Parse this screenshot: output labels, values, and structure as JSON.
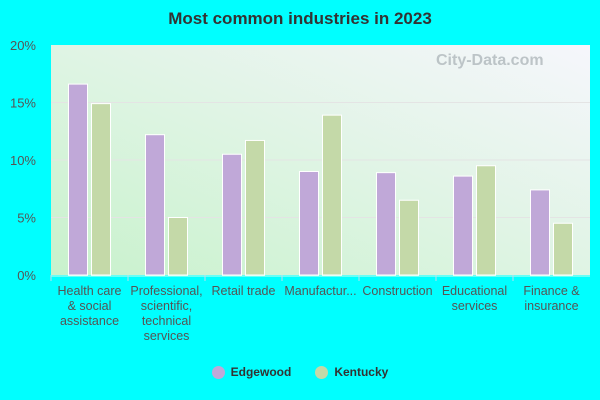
{
  "chart_data": {
    "type": "bar",
    "title": "Most common industries in 2023",
    "categories": [
      [
        "Health care",
        "& social",
        "assistance"
      ],
      [
        "Professional,",
        "scientific,",
        "technical",
        "services"
      ],
      [
        "Retail trade"
      ],
      [
        "Manufactur..."
      ],
      [
        "Construction"
      ],
      [
        "Educational",
        "services"
      ],
      [
        "Finance &",
        "insurance"
      ]
    ],
    "series": [
      {
        "name": "Edgewood",
        "color": "#c0a8d8",
        "values": [
          16.6,
          12.2,
          10.5,
          9.0,
          8.9,
          8.6,
          7.4
        ]
      },
      {
        "name": "Kentucky",
        "color": "#c4d9a8",
        "values": [
          14.9,
          5.0,
          11.7,
          13.9,
          6.5,
          9.5,
          4.5
        ]
      }
    ],
    "ylim": [
      0,
      20
    ],
    "yticks": [
      "0%",
      "5%",
      "10%",
      "15%",
      "20%"
    ],
    "grid": true,
    "legend": "bottom",
    "watermark": "City-Data.com"
  }
}
